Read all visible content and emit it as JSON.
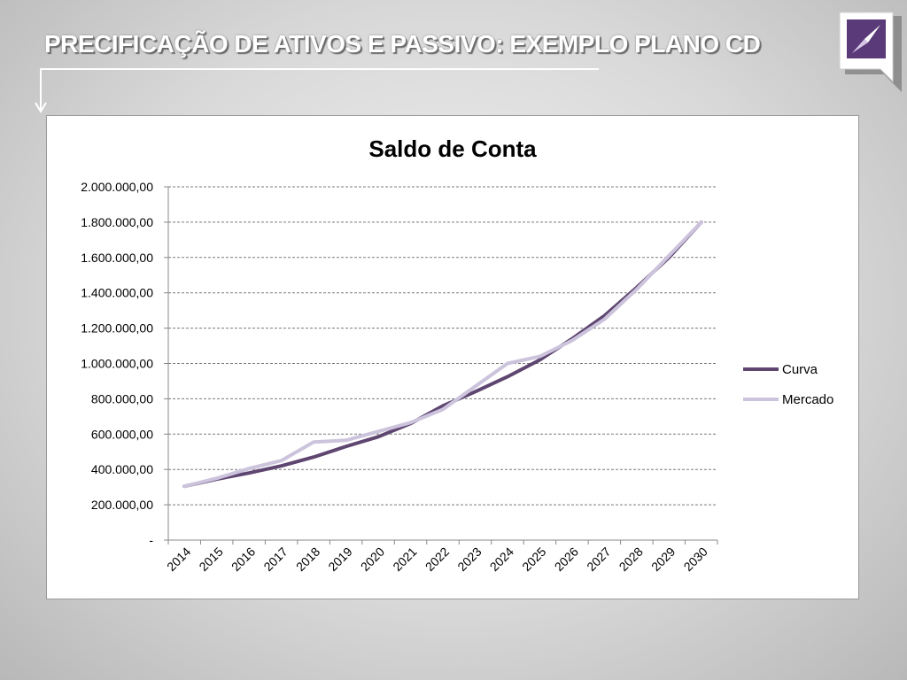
{
  "slide": {
    "title": "PRECIFICAÇÃO DE ATIVOS E PASSIVO:  EXEMPLO PLANO CD"
  },
  "logo": {
    "icon": "compass-arrow-icon",
    "color": "#5a3a78"
  },
  "colors": {
    "curva": "#5e4670",
    "mercado": "#ccc3dc"
  },
  "chart_data": {
    "type": "line",
    "title": "Saldo de Conta",
    "xlabel": "",
    "ylabel": "",
    "categories": [
      "2014",
      "2015",
      "2016",
      "2017",
      "2018",
      "2019",
      "2020",
      "2021",
      "2022",
      "2023",
      "2024",
      "2025",
      "2026",
      "2027",
      "2028",
      "2029",
      "2030"
    ],
    "ylim": [
      0,
      2000000
    ],
    "yticks": [
      0,
      200000,
      400000,
      600000,
      800000,
      1000000,
      1200000,
      1400000,
      1600000,
      1800000,
      2000000
    ],
    "ytick_labels": [
      "-",
      "200.000,00",
      "400.000,00",
      "600.000,00",
      "800.000,00",
      "1.000.000,00",
      "1.200.000,00",
      "1.400.000,00",
      "1.600.000,00",
      "1.800.000,00",
      "2.000.000,00"
    ],
    "grid": true,
    "legend_position": "right",
    "series": [
      {
        "name": "Curva",
        "color": "#5e4670",
        "values": [
          305000,
          345000,
          380000,
          420000,
          470000,
          530000,
          585000,
          660000,
          760000,
          840000,
          925000,
          1020000,
          1140000,
          1270000,
          1430000,
          1600000,
          1800000
        ]
      },
      {
        "name": "Mercado",
        "color": "#ccc3dc",
        "values": [
          305000,
          350000,
          405000,
          450000,
          555000,
          565000,
          615000,
          665000,
          740000,
          870000,
          1000000,
          1040000,
          1130000,
          1250000,
          1420000,
          1610000,
          1800000
        ]
      }
    ]
  }
}
